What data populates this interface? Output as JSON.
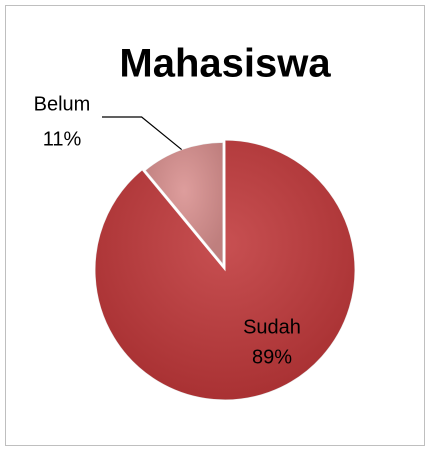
{
  "chart_data": {
    "type": "pie",
    "title": "Mahasiswa",
    "categories": [
      "Sudah",
      "Belum"
    ],
    "values": [
      89,
      11
    ],
    "value_labels": [
      "89%",
      "11%"
    ],
    "colors": [
      "#c0383a",
      "#d9908f"
    ]
  }
}
